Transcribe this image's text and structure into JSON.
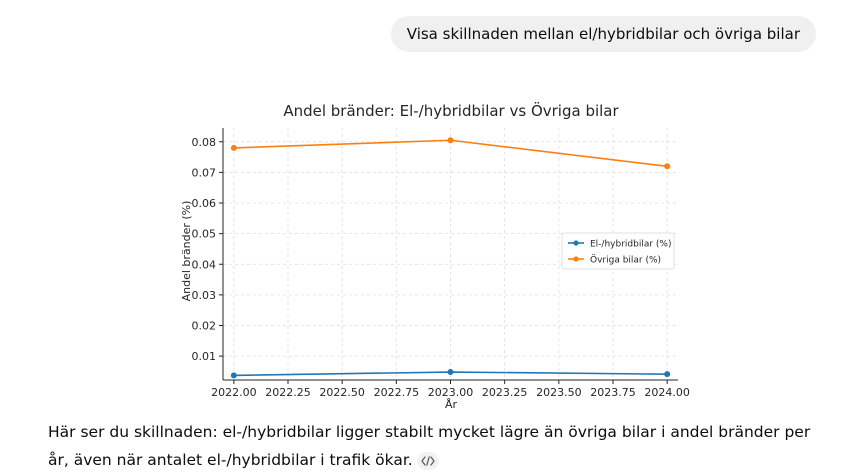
{
  "conversation": {
    "user_message": "Visa skillnaden mellan el/hybridbilar och övriga bilar",
    "assistant_reply": "Här ser du skillnaden: el-/hybridbilar ligger stabilt mycket lägre än övriga bilar i andel bränder per år, även när antalet el-/hybridbilar i trafik ökar.",
    "code_icon": "code-brackets-icon"
  },
  "chart_data": {
    "type": "line",
    "title": "Andel bränder: El-/hybridbilar vs Övriga bilar",
    "xlabel": "År",
    "ylabel": "Andel bränder (%)",
    "xlim": [
      2021.95,
      2024.05
    ],
    "ylim": [
      0.0022,
      0.0845
    ],
    "x_ticks": [
      2022.0,
      2022.25,
      2022.5,
      2022.75,
      2023.0,
      2023.25,
      2023.5,
      2023.75,
      2024.0
    ],
    "x_tick_labels": [
      "2022.00",
      "2022.25",
      "2022.50",
      "2022.75",
      "2023.00",
      "2023.25",
      "2023.50",
      "2023.75",
      "2024.00"
    ],
    "y_ticks": [
      0.01,
      0.02,
      0.03,
      0.04,
      0.05,
      0.06,
      0.07,
      0.08
    ],
    "y_tick_labels": [
      "0.01",
      "0.02",
      "0.03",
      "0.04",
      "0.05",
      "0.06",
      "0.07",
      "0.08"
    ],
    "grid": true,
    "legend_position": "center-right",
    "x": [
      2022,
      2023,
      2024
    ],
    "series": [
      {
        "name": "El-/hybridbilar (%)",
        "color": "#1f77b4",
        "values": [
          0.0037,
          0.0048,
          0.0041
        ]
      },
      {
        "name": "Övriga bilar (%)",
        "color": "#ff7f0e",
        "values": [
          0.078,
          0.0805,
          0.072
        ]
      }
    ]
  }
}
